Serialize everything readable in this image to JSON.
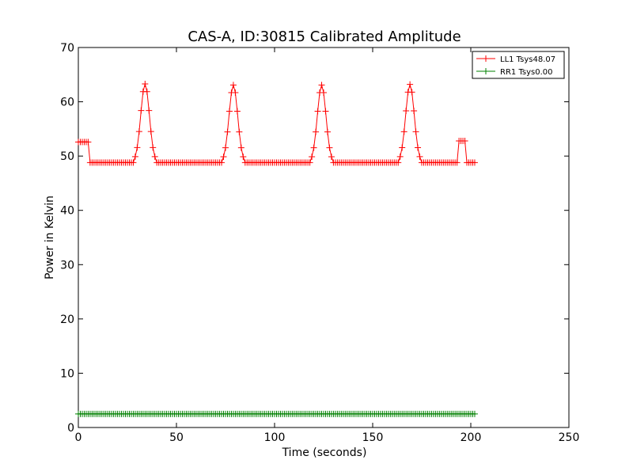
{
  "chart_data": {
    "type": "line",
    "title": "CAS-A, ID:30815 Calibrated Amplitude",
    "xlabel": "Time (seconds)",
    "ylabel": "Power in Kelvin",
    "xlim": [
      0,
      250
    ],
    "ylim": [
      0,
      70
    ],
    "xticks": [
      0,
      50,
      100,
      150,
      200,
      250
    ],
    "yticks": [
      0,
      10,
      20,
      30,
      40,
      50,
      60,
      70
    ],
    "grid": false,
    "legend_position": "top-right",
    "marker": "+",
    "series": [
      {
        "name": "LL1 Tsys48.07",
        "color": "#ff0000",
        "baseline": 48.8,
        "peaks": [
          {
            "center": 34,
            "height": 63.3
          },
          {
            "center": 79,
            "height": 63.1
          },
          {
            "center": 124,
            "height": 63.1
          },
          {
            "center": 169,
            "height": 63.2
          }
        ],
        "peak_half_width": 6,
        "calibration_segments": [
          {
            "x_start": 0,
            "x_end": 5,
            "value": 52.6
          },
          {
            "x_start": 194,
            "x_end": 197,
            "value": 52.8
          }
        ],
        "x_range": [
          0,
          202
        ]
      },
      {
        "name": "RR1 Tsys0.00",
        "color": "#008000",
        "constant_value": 2.5,
        "x_range": [
          0,
          202
        ]
      }
    ]
  }
}
